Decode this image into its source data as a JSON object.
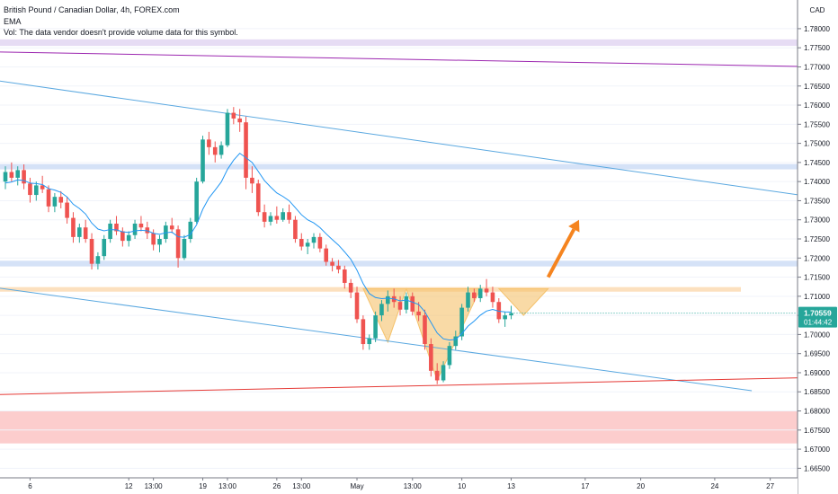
{
  "header": {
    "symbol": "British Pound / Canadian Dollar, 4h, FOREX.com",
    "indicator": "EMA",
    "volume_note": "Vol: The data vendor doesn't provide volume data for this symbol."
  },
  "chart_data": {
    "type": "candlestick",
    "symbol": "British Pound / Canadian Dollar",
    "timeframe": "4h",
    "source": "FOREX.com",
    "currency_unit": "CAD",
    "ylim": [
      1.6625,
      1.7875
    ],
    "y_ticks": [
      "1.78000",
      "1.77500",
      "1.77000",
      "1.76500",
      "1.76000",
      "1.75500",
      "1.75000",
      "1.74500",
      "1.74000",
      "1.73500",
      "1.73000",
      "1.72500",
      "1.72000",
      "1.71500",
      "1.71000",
      "1.70500",
      "1.70000",
      "1.69500",
      "1.69000",
      "1.68500",
      "1.68000",
      "1.67500",
      "1.67000",
      "1.66500"
    ],
    "x_ticks": [
      {
        "label": "6",
        "i": 4
      },
      {
        "label": "12",
        "i": 20
      },
      {
        "label": "13:00",
        "i": 24
      },
      {
        "label": "19",
        "i": 32
      },
      {
        "label": "13:00",
        "i": 36
      },
      {
        "label": "26",
        "i": 44
      },
      {
        "label": "13:00",
        "i": 48
      },
      {
        "label": "May",
        "i": 57
      },
      {
        "label": "13:00",
        "i": 66
      },
      {
        "label": "10",
        "i": 74
      },
      {
        "label": "13",
        "i": 82
      },
      {
        "label": "17",
        "i": 94
      },
      {
        "label": "20",
        "i": 103
      },
      {
        "label": "24",
        "i": 115
      },
      {
        "label": "27",
        "i": 124
      }
    ],
    "last_price": "1.70559",
    "countdown": "01:44:42",
    "ohlc": [
      [
        1.74,
        1.744,
        1.738,
        1.7425
      ],
      [
        1.7425,
        1.745,
        1.74,
        1.741
      ],
      [
        1.741,
        1.744,
        1.739,
        1.743
      ],
      [
        1.743,
        1.7445,
        1.738,
        1.7395
      ],
      [
        1.7395,
        1.741,
        1.7345,
        1.7365
      ],
      [
        1.7365,
        1.74,
        1.735,
        1.739
      ],
      [
        1.739,
        1.7415,
        1.737,
        1.738
      ],
      [
        1.738,
        1.739,
        1.732,
        1.7335
      ],
      [
        1.7335,
        1.737,
        1.732,
        1.736
      ],
      [
        1.736,
        1.7375,
        1.733,
        1.7345
      ],
      [
        1.7345,
        1.736,
        1.729,
        1.7305
      ],
      [
        1.7305,
        1.732,
        1.724,
        1.7255
      ],
      [
        1.7255,
        1.729,
        1.724,
        1.728
      ],
      [
        1.728,
        1.73,
        1.724,
        1.725
      ],
      [
        1.725,
        1.7265,
        1.717,
        1.7185
      ],
      [
        1.7185,
        1.7215,
        1.717,
        1.7205
      ],
      [
        1.7205,
        1.726,
        1.7195,
        1.725
      ],
      [
        1.725,
        1.73,
        1.724,
        1.729
      ],
      [
        1.729,
        1.731,
        1.726,
        1.727
      ],
      [
        1.727,
        1.728,
        1.723,
        1.7245
      ],
      [
        1.7245,
        1.727,
        1.723,
        1.726
      ],
      [
        1.726,
        1.73,
        1.725,
        1.729
      ],
      [
        1.729,
        1.731,
        1.727,
        1.728
      ],
      [
        1.728,
        1.7295,
        1.725,
        1.7265
      ],
      [
        1.7265,
        1.7275,
        1.722,
        1.7235
      ],
      [
        1.7235,
        1.726,
        1.7215,
        1.725
      ],
      [
        1.725,
        1.7295,
        1.724,
        1.7285
      ],
      [
        1.7285,
        1.7305,
        1.7265,
        1.7275
      ],
      [
        1.7275,
        1.7285,
        1.7175,
        1.72
      ],
      [
        1.72,
        1.726,
        1.7195,
        1.725
      ],
      [
        1.725,
        1.7305,
        1.724,
        1.7295
      ],
      [
        1.7295,
        1.741,
        1.729,
        1.74
      ],
      [
        1.74,
        1.752,
        1.7395,
        1.751
      ],
      [
        1.751,
        1.753,
        1.747,
        1.749
      ],
      [
        1.749,
        1.7505,
        1.745,
        1.747
      ],
      [
        1.747,
        1.7505,
        1.746,
        1.7495
      ],
      [
        1.7495,
        1.759,
        1.749,
        1.758
      ],
      [
        1.758,
        1.7595,
        1.755,
        1.7565
      ],
      [
        1.7565,
        1.759,
        1.753,
        1.7555
      ],
      [
        1.7555,
        1.757,
        1.738,
        1.741
      ],
      [
        1.741,
        1.744,
        1.737,
        1.7395
      ],
      [
        1.7395,
        1.7405,
        1.731,
        1.732
      ],
      [
        1.732,
        1.734,
        1.728,
        1.7295
      ],
      [
        1.7295,
        1.732,
        1.7285,
        1.731
      ],
      [
        1.731,
        1.7335,
        1.729,
        1.73
      ],
      [
        1.73,
        1.733,
        1.7295,
        1.732
      ],
      [
        1.732,
        1.734,
        1.729,
        1.73
      ],
      [
        1.73,
        1.731,
        1.724,
        1.725
      ],
      [
        1.725,
        1.7265,
        1.722,
        1.723
      ],
      [
        1.723,
        1.725,
        1.721,
        1.724
      ],
      [
        1.724,
        1.7265,
        1.7225,
        1.7255
      ],
      [
        1.7255,
        1.7265,
        1.7215,
        1.7225
      ],
      [
        1.7225,
        1.7235,
        1.718,
        1.719
      ],
      [
        1.719,
        1.72,
        1.7165,
        1.718
      ],
      [
        1.718,
        1.7195,
        1.716,
        1.717
      ],
      [
        1.717,
        1.718,
        1.712,
        1.7135
      ],
      [
        1.7135,
        1.7145,
        1.7095,
        1.711
      ],
      [
        1.711,
        1.7125,
        1.703,
        1.704
      ],
      [
        1.704,
        1.705,
        1.696,
        1.6975
      ],
      [
        1.6975,
        1.7,
        1.696,
        1.699
      ],
      [
        1.699,
        1.706,
        1.698,
        1.705
      ],
      [
        1.705,
        1.709,
        1.7035,
        1.708
      ],
      [
        1.708,
        1.7115,
        1.706,
        1.71
      ],
      [
        1.71,
        1.712,
        1.707,
        1.7085
      ],
      [
        1.7085,
        1.71,
        1.705,
        1.7065
      ],
      [
        1.7065,
        1.711,
        1.7055,
        1.71
      ],
      [
        1.71,
        1.711,
        1.705,
        1.706
      ],
      [
        1.706,
        1.7085,
        1.7035,
        1.705
      ],
      [
        1.705,
        1.7065,
        1.696,
        1.6975
      ],
      [
        1.6975,
        1.699,
        1.689,
        1.6905
      ],
      [
        1.6905,
        1.6925,
        1.687,
        1.688
      ],
      [
        1.688,
        1.693,
        1.6875,
        1.692
      ],
      [
        1.692,
        1.698,
        1.691,
        1.697
      ],
      [
        1.697,
        1.701,
        1.696,
        1.6995
      ],
      [
        1.6995,
        1.708,
        1.6985,
        1.707
      ],
      [
        1.707,
        1.7125,
        1.706,
        1.711
      ],
      [
        1.711,
        1.712,
        1.7085,
        1.7095
      ],
      [
        1.7095,
        1.713,
        1.7085,
        1.712
      ],
      [
        1.712,
        1.7145,
        1.71,
        1.711
      ],
      [
        1.711,
        1.7125,
        1.707,
        1.7085
      ],
      [
        1.7085,
        1.7095,
        1.703,
        1.704
      ],
      [
        1.704,
        1.706,
        1.702,
        1.705
      ],
      [
        1.705,
        1.7075,
        1.704,
        1.7056
      ]
    ],
    "ema_start": 1.739,
    "ema_period": 10,
    "zones": [
      {
        "from": 1.7772,
        "to": 1.7755,
        "color": "#ddd0f0"
      },
      {
        "from": 1.7446,
        "to": 1.7432,
        "color": "#c7d8f4"
      },
      {
        "from": 1.7193,
        "to": 1.7178,
        "color": "#c7d8f4"
      },
      {
        "from": 1.7124,
        "to": 1.7112,
        "color": "#fbd6a8"
      },
      {
        "from": 1.68,
        "to": 1.6715,
        "color": "#fbbcbc"
      }
    ],
    "trendlines": [
      {
        "color": "#5aa8e0",
        "from": {
          "i": -4,
          "p": 1.767
        },
        "to": {
          "i": 133,
          "p": 1.7355
        }
      },
      {
        "color": "#5aa8e0",
        "from": {
          "i": -4,
          "p": 1.7128
        },
        "to": {
          "i": 121,
          "p": 1.6853
        }
      },
      {
        "color": "#9c27b0",
        "from": {
          "i": -4,
          "p": 1.774
        },
        "to": {
          "i": 133,
          "p": 1.77
        }
      },
      {
        "color": "#e53935",
        "from": {
          "i": -4,
          "p": 1.6842
        },
        "to": {
          "i": 133,
          "p": 1.6888
        }
      }
    ],
    "pattern": {
      "color": "#f5c26b",
      "left_shoulder": [
        [
          58,
          1.712
        ],
        [
          62,
          1.698
        ],
        [
          65,
          1.712
        ]
      ],
      "head": [
        [
          65,
          1.712
        ],
        [
          70,
          1.688
        ],
        [
          77,
          1.712
        ]
      ],
      "right_shoulder": [
        [
          80,
          1.712
        ],
        [
          84,
          1.705
        ],
        [
          88,
          1.712
        ]
      ]
    },
    "arrow": {
      "color": "#f5841f",
      "from": {
        "i": 88,
        "p": 1.715
      },
      "to": {
        "i": 93,
        "p": 1.73
      }
    },
    "colors": {
      "up": "#26a69a",
      "down": "#ef5350",
      "ema": "#2196f3",
      "price_label": "#26a69a",
      "grid": "#f0f3fa",
      "axis": "#787b86"
    }
  }
}
